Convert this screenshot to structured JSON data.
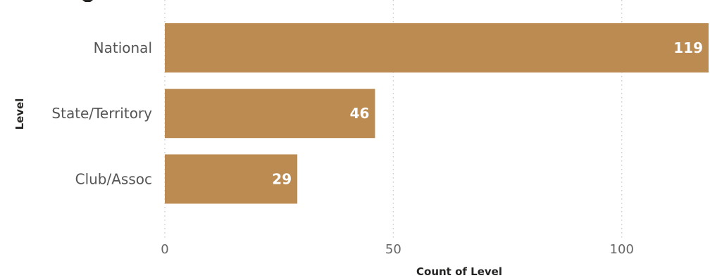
{
  "chart_data": {
    "type": "bar",
    "orientation": "horizontal",
    "categories": [
      "National",
      "State/Territory",
      "Club/Assoc"
    ],
    "values": [
      119,
      46,
      29
    ],
    "xlabel": "Count of Level",
    "ylabel": "Level",
    "xlim": [
      0,
      119
    ],
    "x_ticks": [
      0,
      50,
      100
    ],
    "grid": true,
    "data_labels": true,
    "colors": {
      "bar": "#bb8b52",
      "data_label": "#ffffff",
      "grid": "#c8c8c8"
    }
  }
}
